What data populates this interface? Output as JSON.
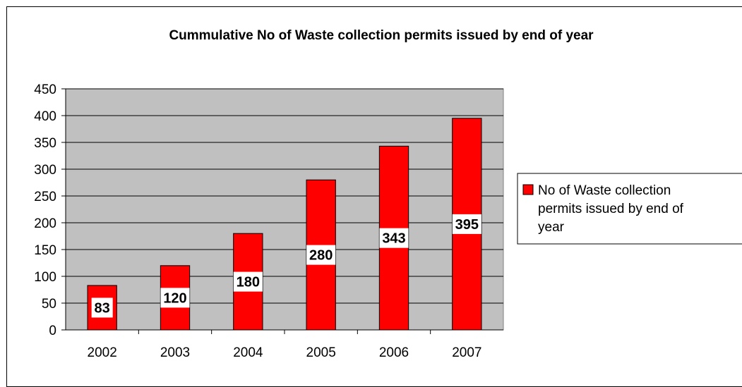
{
  "chart_data": {
    "type": "bar",
    "title": "Cummulative No of Waste collection permits issued by end of year",
    "categories": [
      "2002",
      "2003",
      "2004",
      "2005",
      "2006",
      "2007"
    ],
    "series": [
      {
        "name": "No of Waste collection permits issued by end of year",
        "legend_lines": [
          "No of Waste collection",
          "permits issued by end of",
          "year"
        ],
        "values": [
          83,
          120,
          180,
          280,
          343,
          395
        ],
        "color": "#ff0000"
      }
    ],
    "ylim": [
      0,
      450
    ],
    "yticks": [
      "0",
      "50",
      "100",
      "150",
      "200",
      "250",
      "300",
      "350",
      "400",
      "450"
    ],
    "xlabel": "",
    "ylabel": "",
    "grid": true,
    "legend": "right",
    "plot_background": "#c0c0c0",
    "data_labels": true
  }
}
